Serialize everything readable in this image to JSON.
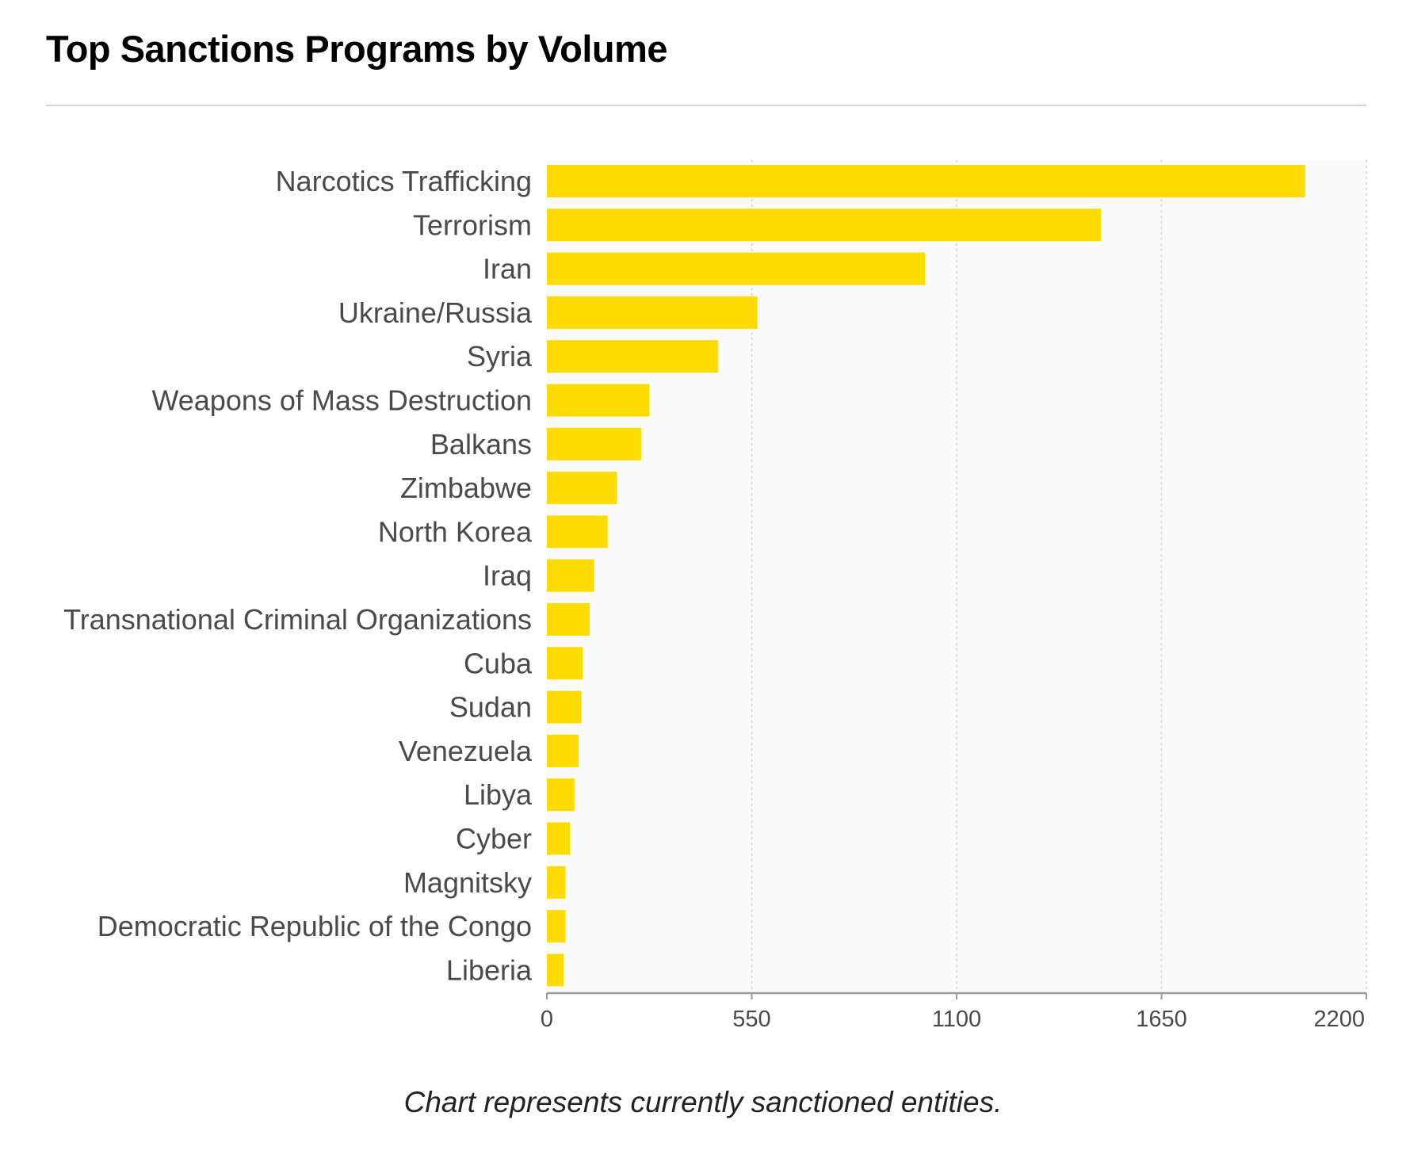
{
  "colors": {
    "bar": "#FFDC00",
    "plot_background": "#FAFAFA",
    "grid": "#D0D0D0",
    "axis": "#9A9A9A",
    "rule": "#C9D6E3"
  },
  "chart_data": {
    "type": "bar",
    "orientation": "horizontal",
    "title": "Top Sanctions Programs by Volume",
    "caption": "Chart represents currently sanctioned entities.",
    "categories": [
      "Narcotics Trafficking",
      "Terrorism",
      "Iran",
      "Ukraine/Russia",
      "Syria",
      "Weapons of Mass Destruction",
      "Balkans",
      "Zimbabwe",
      "North Korea",
      "Iraq",
      "Transnational Criminal Organizations",
      "Cuba",
      "Sudan",
      "Venezuela",
      "Libya",
      "Cyber",
      "Magnitsky",
      "Democratic Republic of the Congo",
      "Liberia"
    ],
    "values": [
      2035,
      1488,
      1015,
      565,
      460,
      275,
      253,
      188,
      163,
      127,
      115,
      96,
      93,
      85,
      74,
      62,
      50,
      50,
      45
    ],
    "xlim": [
      0,
      2200
    ],
    "xticks": [
      0,
      550,
      1100,
      1650,
      2200
    ],
    "xtick_labels": [
      "0",
      "550",
      "1100",
      "1650",
      "2200"
    ],
    "grid": "vertical dotted",
    "legend": "none"
  }
}
